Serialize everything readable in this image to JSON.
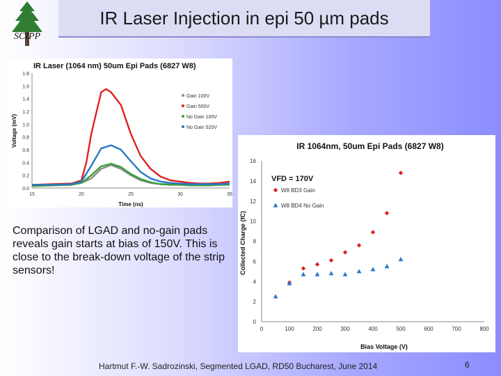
{
  "slide": {
    "title": "IR Laser Injection in epi 50 µm pads",
    "logo_text": "SCIPP",
    "caption": "Comparison of LGAD and no-gain pads reveals gain starts at bias of 150V. This is close to the break-down voltage of the strip sensors!",
    "footer": "Hartmut F.-W. Sadrozinski, Segmented LGAD, RD50 Bucharest, June 2014",
    "page_number": "6"
  },
  "chart_data": [
    {
      "type": "line",
      "title": "IR Laser (1064 nm) 50um Epi Pads (6827 W8)",
      "xlabel": "Time (ns)",
      "ylabel": "Voltage (mV)",
      "xlim": [
        15,
        35
      ],
      "ylim": [
        0,
        1.8
      ],
      "x_ticks": [
        "15",
        "20",
        "25",
        "30",
        "35"
      ],
      "y_ticks": [
        "0.0",
        "0.2",
        "0.4",
        "0.6",
        "0.8",
        "1.0",
        "1.2",
        "1.4",
        "1.6",
        "1.8"
      ],
      "legend_position": "right",
      "series": [
        {
          "name": "Gain 100V",
          "color": "#8a8a8a",
          "x": [
            15,
            17,
            19,
            20,
            21,
            22,
            23,
            24,
            25,
            26,
            27,
            28,
            29,
            30,
            31,
            32,
            33,
            34,
            35
          ],
          "y": [
            0.05,
            0.05,
            0.06,
            0.08,
            0.15,
            0.3,
            0.36,
            0.3,
            0.2,
            0.12,
            0.08,
            0.06,
            0.06,
            0.05,
            0.05,
            0.05,
            0.05,
            0.05,
            0.05
          ]
        },
        {
          "name": "Gain 500V",
          "color": "#e02020",
          "x": [
            15,
            17,
            19,
            20,
            20.5,
            21,
            22,
            22.5,
            23,
            24,
            25,
            26,
            27,
            28,
            29,
            30,
            31,
            32,
            33,
            34,
            35
          ],
          "y": [
            0.05,
            0.06,
            0.07,
            0.12,
            0.4,
            0.85,
            1.5,
            1.55,
            1.5,
            1.3,
            0.85,
            0.5,
            0.3,
            0.18,
            0.12,
            0.1,
            0.08,
            0.07,
            0.07,
            0.08,
            0.1
          ]
        },
        {
          "name": "No Gain 100V",
          "color": "#3aa03a",
          "x": [
            15,
            17,
            19,
            20,
            21,
            22,
            23,
            24,
            25,
            26,
            27,
            28,
            29,
            30,
            31,
            32,
            33,
            34,
            35
          ],
          "y": [
            0.03,
            0.04,
            0.05,
            0.08,
            0.2,
            0.34,
            0.38,
            0.33,
            0.22,
            0.14,
            0.09,
            0.06,
            0.05,
            0.05,
            0.04,
            0.04,
            0.04,
            0.05,
            0.05
          ]
        },
        {
          "name": "No Gain 520V",
          "color": "#2878c8",
          "x": [
            15,
            17,
            19,
            20,
            21,
            22,
            23,
            24,
            25,
            26,
            27,
            28,
            29,
            30,
            31,
            32,
            33,
            34,
            35
          ],
          "y": [
            0.05,
            0.05,
            0.06,
            0.1,
            0.35,
            0.62,
            0.67,
            0.6,
            0.42,
            0.25,
            0.15,
            0.1,
            0.08,
            0.07,
            0.06,
            0.06,
            0.06,
            0.06,
            0.07
          ]
        }
      ]
    },
    {
      "type": "scatter",
      "title": "IR 1064nm, 50um Epi Pads (6827 W8)",
      "xlabel": "Bias Voltage (V)",
      "ylabel": "Collected Charge (fC)",
      "xlim": [
        0,
        800
      ],
      "ylim": [
        0,
        16
      ],
      "x_ticks": [
        "0",
        "100",
        "200",
        "300",
        "400",
        "500",
        "600",
        "700",
        "800"
      ],
      "y_ticks": [
        "0",
        "2",
        "4",
        "6",
        "8",
        "10",
        "12",
        "14",
        "16"
      ],
      "annotation": "VFD = 170V",
      "legend_position": "top-left",
      "series": [
        {
          "name": "W8 BD3 Gain",
          "color": "#e02020",
          "marker": "diamond",
          "x": [
            100,
            150,
            200,
            250,
            300,
            350,
            400,
            450,
            500
          ],
          "y": [
            3.9,
            5.3,
            5.7,
            6.1,
            6.9,
            7.6,
            8.9,
            10.8,
            14.8
          ]
        },
        {
          "name": "W8 BD4 No Gain",
          "color": "#2878c8",
          "marker": "triangle",
          "x": [
            50,
            100,
            150,
            200,
            250,
            300,
            350,
            400,
            450,
            500
          ],
          "y": [
            2.5,
            3.8,
            4.7,
            4.7,
            4.8,
            4.7,
            5.0,
            5.2,
            5.5,
            6.2
          ]
        }
      ]
    }
  ]
}
